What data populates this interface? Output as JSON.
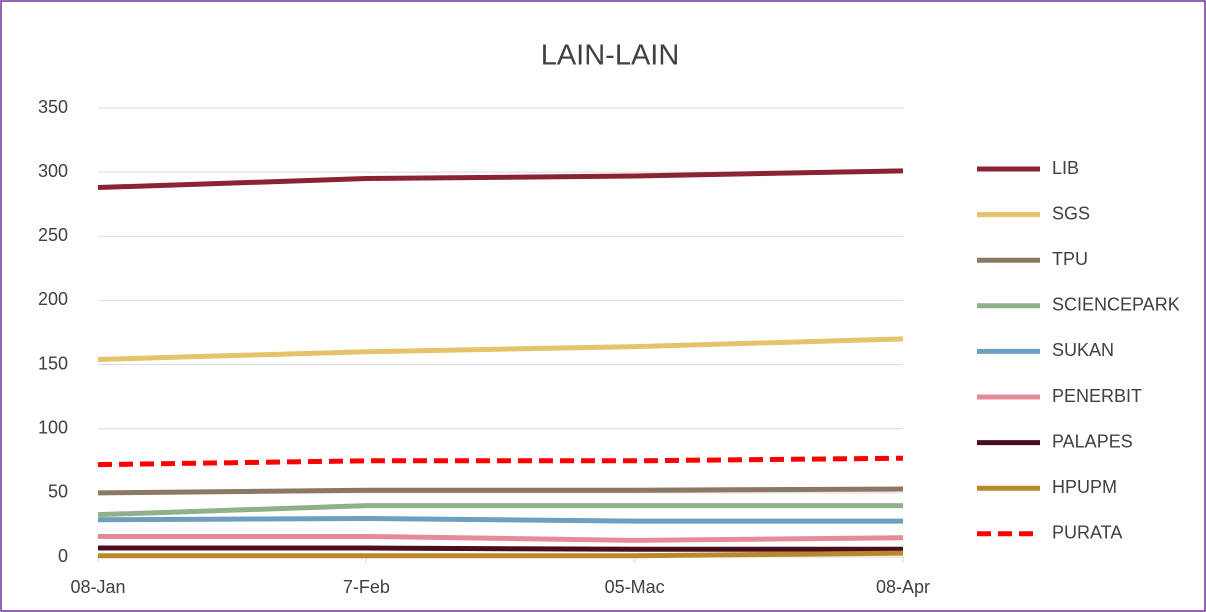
{
  "chart_data": {
    "type": "line",
    "title": "LAIN-LAIN",
    "categories": [
      "08-Jan",
      "7-Feb",
      "05-Mac",
      "08-Apr"
    ],
    "series": [
      {
        "name": "LIB",
        "color": "#8b2332",
        "values": [
          288,
          295,
          297,
          301
        ]
      },
      {
        "name": "SGS",
        "color": "#e6c36b",
        "values": [
          154,
          160,
          164,
          170
        ]
      },
      {
        "name": "TPU",
        "color": "#8b7763",
        "values": [
          50,
          52,
          52,
          53
        ]
      },
      {
        "name": "SCIENCEPARK",
        "color": "#8fb08a",
        "values": [
          33,
          40,
          40,
          40
        ]
      },
      {
        "name": "SUKAN",
        "color": "#6f9fbf",
        "values": [
          29,
          30,
          28,
          28
        ]
      },
      {
        "name": "PENERBIT",
        "color": "#e38b96",
        "values": [
          16,
          16,
          13,
          15
        ]
      },
      {
        "name": "PALAPES",
        "color": "#4a0f1e",
        "values": [
          7,
          7,
          6,
          6
        ]
      },
      {
        "name": "HPUPM",
        "color": "#b8882a",
        "values": [
          1,
          1,
          1,
          3
        ]
      },
      {
        "name": "PURATA",
        "color": "#ff0000",
        "dashed": true,
        "values": [
          72,
          75,
          75,
          77
        ]
      }
    ],
    "ylim": [
      0,
      350
    ],
    "yticks": [
      0,
      50,
      100,
      150,
      200,
      250,
      300,
      350
    ],
    "grid": true,
    "legend": "right"
  }
}
